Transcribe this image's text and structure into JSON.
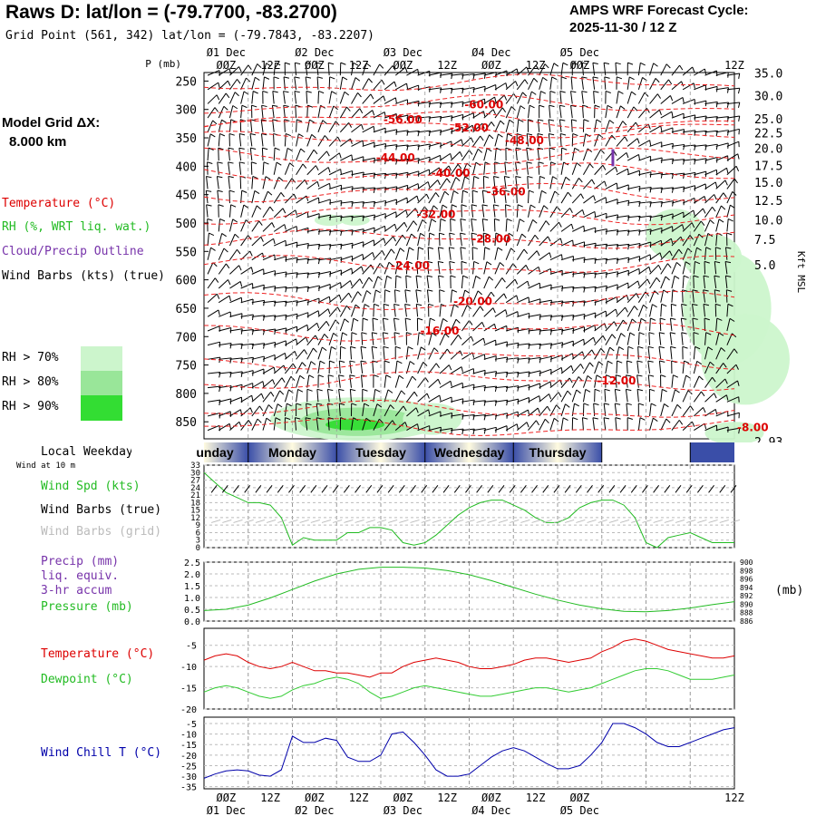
{
  "header": {
    "title": "Raws D:  lat/lon = (-79.7700, -83.2700)",
    "subtitle": "Grid Point (561, 342) lat/lon = (-79.7843, -83.2207)",
    "cycle_line1": "AMPS WRF Forecast Cycle:",
    "cycle_line2": "2025-11-30 / 12  Z"
  },
  "left_legend": {
    "grid_title": "Model Grid ΔX:",
    "grid_value": "8.000 km",
    "temperature": "Temperature (°C)",
    "rh": "RH (%, WRT liq. wat.)",
    "cloud": "Cloud/Precip Outline",
    "wind": "Wind Barbs (kts) (true)",
    "rh_levels": [
      "RH > 70%",
      "RH > 80%",
      "RH > 90%"
    ],
    "rh_colors": [
      "#ccf5cc",
      "#99e699",
      "#33dd33"
    ]
  },
  "time_axis": {
    "top_dates": [
      "01 Dec",
      "02 Dec",
      "03 Dec",
      "04 Dec",
      "05 Dec"
    ],
    "top_dates_styled": [
      "Ø1 Dec",
      "Ø2 Dec",
      "Ø3 Dec",
      "Ø4 Dec",
      "Ø5 Dec"
    ],
    "hour_labels": [
      "00Z",
      "12Z",
      "00Z",
      "12Z",
      "00Z",
      "12Z",
      "00Z",
      "12Z",
      "00Z",
      "12Z"
    ],
    "hour_labels_styled": [
      "ØØZ",
      "12Z",
      "ØØZ",
      "12Z",
      "ØØZ",
      "12Z",
      "ØØZ",
      "12Z",
      "ØØZ",
      "12Z"
    ]
  },
  "weekday_bar": {
    "label": "Local Weekday",
    "sublabel": "Wind at 10 m",
    "days": [
      "unday",
      "Monday",
      "Tuesday",
      "Wednesday",
      "Thursday"
    ],
    "colors": {
      "dark": "#3a4ea8",
      "light": "#fffbe0"
    }
  },
  "chart_data": [
    {
      "type": "contour",
      "name": "vertical-profile",
      "yaxis_label": "P (mb)",
      "pressure_ticks": [
        250,
        300,
        350,
        400,
        450,
        500,
        550,
        600,
        650,
        700,
        750,
        800,
        850
      ],
      "ylim": [
        235,
        880
      ],
      "right_label": "Kft MSL",
      "right_ticks": [
        "35.0",
        "30.0",
        "25.0",
        "22.5",
        "20.0",
        "17.5",
        "15.0",
        "12.5",
        "10.0",
        "7.5",
        "5.0",
        "2.93"
      ],
      "right_tick_pressures": [
        237,
        277,
        318,
        343,
        370,
        400,
        430,
        462,
        496,
        530,
        575,
        630
      ],
      "temperature_labels": [
        {
          "text": "-60.00",
          "hour": 76,
          "p": 292
        },
        {
          "text": "-56.00",
          "hour": 54,
          "p": 318
        },
        {
          "text": "-52.00",
          "hour": 72,
          "p": 332
        },
        {
          "text": "-48.00",
          "hour": 87,
          "p": 355
        },
        {
          "text": "-44.00",
          "hour": 52,
          "p": 385
        },
        {
          "text": "-40.00",
          "hour": 67,
          "p": 412
        },
        {
          "text": "-36.00",
          "hour": 82,
          "p": 445
        },
        {
          "text": "-32.00",
          "hour": 63,
          "p": 485
        },
        {
          "text": "-28.00",
          "hour": 78,
          "p": 528
        },
        {
          "text": "-24.00",
          "hour": 56,
          "p": 575
        },
        {
          "text": "-20.00",
          "hour": 73,
          "p": 638
        },
        {
          "text": "-16.00",
          "hour": 64,
          "p": 690
        },
        {
          "text": "-12.00",
          "hour": 112,
          "p": 778
        },
        {
          "text": "-8.00",
          "hour": 149,
          "p": 860
        }
      ],
      "rh_regions": [
        {
          "level": 1,
          "hour": 42,
          "p": 845,
          "rh": 6,
          "rp": 38
        },
        {
          "level": 2,
          "hour": 42,
          "p": 850,
          "rh": 4,
          "rp": 25
        },
        {
          "level": 3,
          "hour": 41,
          "p": 855,
          "rh": 2,
          "rp": 10
        },
        {
          "level": 1,
          "hour": 62,
          "p": 845,
          "rh": 2,
          "rp": 28
        },
        {
          "level": 1,
          "hour": 34,
          "p": 495,
          "rh": 1,
          "rp": 10
        },
        {
          "level": 1,
          "hour": 41,
          "p": 495,
          "rh": 1,
          "rp": 8
        },
        {
          "level": 1,
          "hour": 128,
          "p": 520,
          "rh": 2,
          "rp": 45
        },
        {
          "level": 1,
          "hour": 138,
          "p": 560,
          "rh": 2,
          "rp": 40
        },
        {
          "level": 1,
          "hour": 142,
          "p": 650,
          "rh": 3,
          "rp": 100
        },
        {
          "level": 1,
          "hour": 147,
          "p": 740,
          "rh": 3,
          "rp": 80
        },
        {
          "level": 1,
          "hour": 144,
          "p": 870,
          "rh": 2,
          "rp": 20
        }
      ],
      "cloud_outline": {
        "hour": 111,
        "p1": 370,
        "p2": 400
      }
    },
    {
      "type": "line",
      "name": "wind-speed",
      "label_spd": "Wind Spd (kts)",
      "label_true": "Wind Barbs (true)",
      "label_grid": "Wind Barbs (grid)",
      "y_ticks": [
        0,
        3,
        6,
        9,
        12,
        15,
        18,
        21,
        24,
        27,
        30,
        33
      ],
      "ylim": [
        0,
        33
      ],
      "x_hours": [
        0,
        3,
        6,
        9,
        12,
        15,
        18,
        21,
        24,
        27,
        30,
        33,
        36,
        39,
        42,
        45,
        48,
        51,
        54,
        57,
        60,
        63,
        66,
        69,
        72,
        75,
        78,
        81,
        84,
        87,
        90,
        93,
        96,
        99,
        102,
        105,
        108,
        111,
        114,
        117,
        120,
        123,
        126,
        129,
        132,
        135,
        138,
        141,
        144
      ],
      "values": [
        30,
        26,
        22,
        20,
        18,
        18,
        17,
        12,
        1,
        4,
        3,
        3,
        3,
        6,
        6,
        8,
        8,
        7,
        2,
        1,
        2,
        5,
        9,
        13,
        16,
        18,
        19,
        19,
        17,
        15,
        12,
        10,
        10,
        12,
        16,
        18,
        19,
        19,
        17,
        12,
        2,
        0,
        4,
        5,
        6,
        4,
        2,
        2,
        2
      ]
    },
    {
      "type": "line",
      "name": "pressure",
      "label_precip": "Precip (mm)",
      "label_liq": "liq. equiv.",
      "label_accum": "3-hr accum",
      "label_pressure": "Pressure (mb)",
      "unit": "(mb)",
      "left_ticks": [
        "2.5",
        "2.0",
        "1.5",
        "1.0",
        "0.5",
        "0.0"
      ],
      "right_ticks": [
        900,
        898,
        896,
        894,
        892,
        890,
        888,
        886
      ],
      "ylim": [
        886,
        900
      ],
      "x_hours": [
        0,
        6,
        12,
        18,
        24,
        30,
        36,
        42,
        48,
        54,
        60,
        66,
        72,
        78,
        84,
        90,
        96,
        102,
        108,
        114,
        120,
        126,
        132,
        138,
        144
      ],
      "values": [
        888.5,
        888.8,
        889.8,
        891.5,
        893.5,
        895.5,
        897.2,
        898.3,
        898.8,
        898.8,
        898.6,
        898.0,
        897.0,
        895.6,
        894.0,
        892.4,
        891.0,
        889.8,
        888.9,
        888.3,
        888.2,
        888.5,
        889.1,
        889.9,
        890.6
      ]
    },
    {
      "type": "line",
      "name": "temperature-dewpoint",
      "label_temp": "Temperature (°C)",
      "label_dew": "Dewpoint (°C)",
      "y_ticks": [
        -5,
        -10,
        -15,
        -20
      ],
      "ylim": [
        -20,
        -1
      ],
      "x_hours": [
        0,
        3,
        6,
        9,
        12,
        15,
        18,
        21,
        24,
        27,
        30,
        33,
        36,
        39,
        42,
        45,
        48,
        51,
        54,
        57,
        60,
        63,
        66,
        69,
        72,
        75,
        78,
        81,
        84,
        87,
        90,
        93,
        96,
        99,
        102,
        105,
        108,
        111,
        114,
        117,
        120,
        123,
        126,
        129,
        132,
        135,
        138,
        141,
        144
      ],
      "series": [
        {
          "name": "Temperature",
          "color": "#dd0000",
          "values": [
            -8.5,
            -7.5,
            -7,
            -7.5,
            -9,
            -10,
            -10.5,
            -10,
            -9,
            -10,
            -11,
            -11,
            -11.5,
            -11.5,
            -12,
            -12.5,
            -11.5,
            -11.5,
            -10,
            -9,
            -8.5,
            -8,
            -8.5,
            -9,
            -10,
            -10.5,
            -10.5,
            -10,
            -9.5,
            -8.5,
            -8,
            -8,
            -8.5,
            -9,
            -8.5,
            -8,
            -6.5,
            -5.5,
            -4,
            -3.5,
            -4,
            -5,
            -6,
            -6.5,
            -7,
            -7.5,
            -8,
            -8,
            -7.5
          ]
        },
        {
          "name": "Dewpoint",
          "color": "#33cc33",
          "values": [
            -16,
            -15,
            -14.5,
            -15,
            -16,
            -17,
            -17.5,
            -17,
            -15.5,
            -14.5,
            -14,
            -13,
            -12.5,
            -13,
            -14,
            -16,
            -17.5,
            -17,
            -16,
            -15,
            -14.5,
            -15,
            -15.5,
            -16,
            -16.5,
            -17,
            -17,
            -16.5,
            -16,
            -15.5,
            -15,
            -15,
            -15.5,
            -16,
            -15.5,
            -15,
            -14,
            -13,
            -12,
            -11,
            -10.5,
            -10.5,
            -11,
            -12,
            -13,
            -13,
            -13,
            -12.5,
            -12
          ]
        }
      ]
    },
    {
      "type": "line",
      "name": "wind-chill",
      "label": "Wind Chill T (°C)",
      "y_ticks": [
        -5,
        -10,
        -15,
        -20,
        -25,
        -30,
        -35
      ],
      "ylim": [
        -36,
        -2
      ],
      "x_hours": [
        0,
        3,
        6,
        9,
        12,
        15,
        18,
        21,
        24,
        27,
        30,
        33,
        36,
        39,
        42,
        45,
        48,
        51,
        54,
        57,
        60,
        63,
        66,
        69,
        72,
        75,
        78,
        81,
        84,
        87,
        90,
        93,
        96,
        99,
        102,
        105,
        108,
        111,
        114,
        117,
        120,
        123,
        126,
        129,
        132,
        135,
        138,
        141,
        144
      ],
      "color": "#0000aa",
      "values": [
        -31,
        -29,
        -27.5,
        -27,
        -27.5,
        -29.5,
        -30,
        -27,
        -11,
        -14,
        -14,
        -12,
        -13,
        -21,
        -23,
        -23,
        -20,
        -10,
        -9,
        -14,
        -20,
        -27,
        -30,
        -30,
        -29,
        -25,
        -21,
        -18,
        -16.5,
        -18,
        -21,
        -24,
        -26.5,
        -26.5,
        -25,
        -20,
        -14,
        -5,
        -5,
        -7,
        -10,
        -14,
        -16,
        -16,
        -14,
        -12,
        -10,
        -8,
        -7
      ]
    }
  ]
}
